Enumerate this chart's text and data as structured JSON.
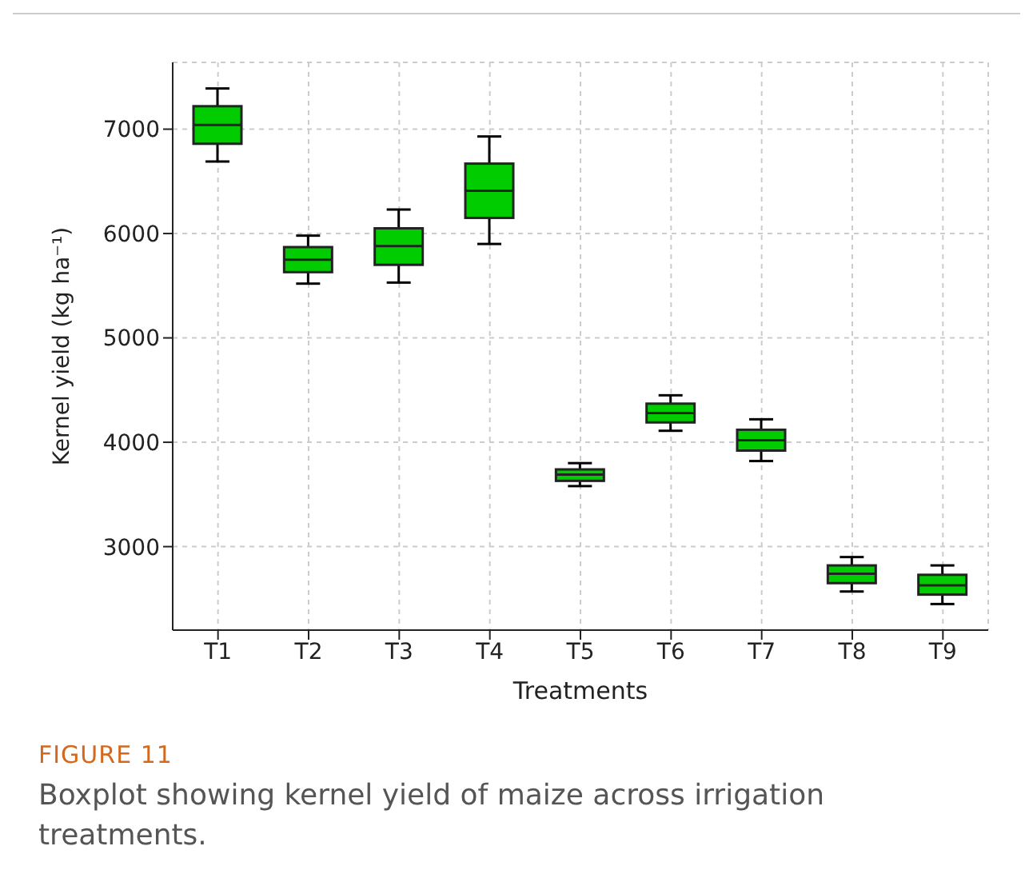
{
  "chart_data": {
    "type": "box",
    "xlabel": "Treatments",
    "ylabel": "Kernel yield (kg ha⁻¹)",
    "categories": [
      "T1",
      "T2",
      "T3",
      "T4",
      "T5",
      "T6",
      "T7",
      "T8",
      "T9"
    ],
    "color": "#00cc00",
    "boxes": [
      {
        "low": 6690,
        "q1": 6860,
        "median": 7040,
        "q3": 7220,
        "high": 7390
      },
      {
        "low": 5520,
        "q1": 5630,
        "median": 5750,
        "q3": 5870,
        "high": 5980
      },
      {
        "low": 5530,
        "q1": 5700,
        "median": 5880,
        "q3": 6050,
        "high": 6230
      },
      {
        "low": 5900,
        "q1": 6150,
        "median": 6410,
        "q3": 6670,
        "high": 6930
      },
      {
        "low": 3580,
        "q1": 3630,
        "median": 3690,
        "q3": 3740,
        "high": 3800
      },
      {
        "low": 4110,
        "q1": 4190,
        "median": 4280,
        "q3": 4370,
        "high": 4450
      },
      {
        "low": 3820,
        "q1": 3920,
        "median": 4020,
        "q3": 4120,
        "high": 4220
      },
      {
        "low": 2570,
        "q1": 2650,
        "median": 2740,
        "q3": 2820,
        "high": 2900
      },
      {
        "low": 2450,
        "q1": 2540,
        "median": 2630,
        "q3": 2730,
        "high": 2820
      }
    ],
    "ylim": [
      2200,
      7640
    ],
    "yticks": [
      3000,
      4000,
      5000,
      6000,
      7000
    ],
    "grid": true,
    "annotations": [
      "FIGURE 11",
      "Boxplot showing kernel yield of maize across irrigation treatments."
    ]
  }
}
